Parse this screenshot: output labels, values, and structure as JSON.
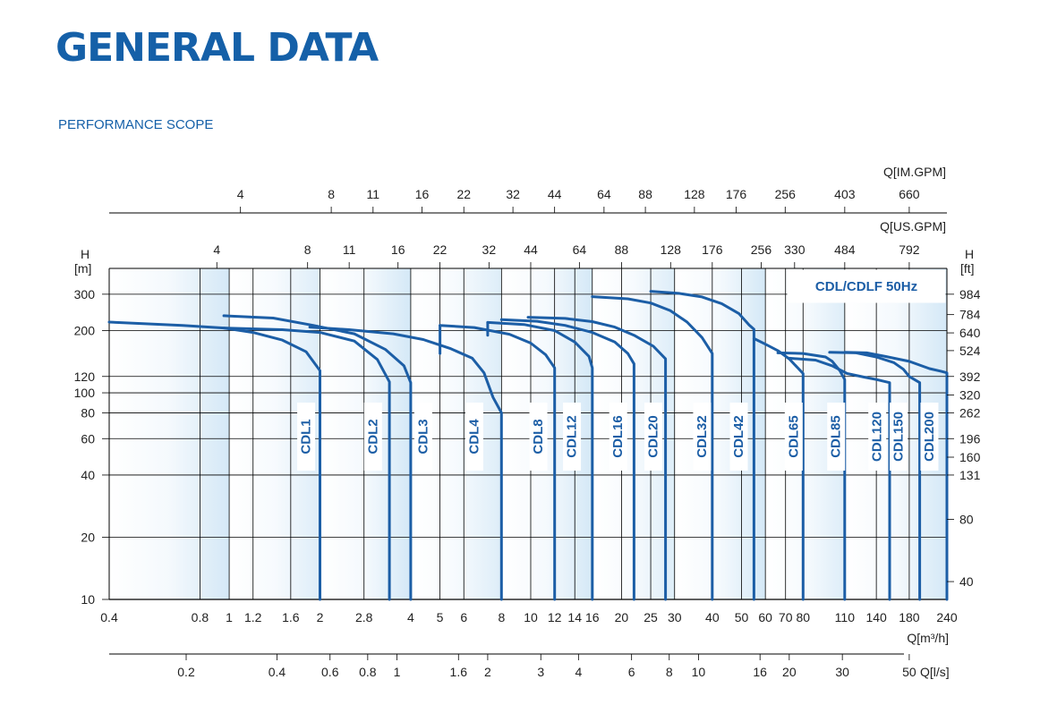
{
  "page": {
    "title": "GENERAL DATA",
    "subtitle": "PERFORMANCE SCOPE"
  },
  "colors": {
    "title": "#1560a8",
    "curve": "#1c5ea6",
    "grid": "#000000",
    "band_light": "#ffffff",
    "band_dark": "#d2e7f6"
  },
  "chart_data": {
    "type": "line",
    "legend_box": "CDL/CDLF   50Hz",
    "y_left_label": [
      "H",
      "[m]"
    ],
    "y_right_label": [
      "H",
      "[ft]"
    ],
    "x_bottom_label": "Q[m³/h]",
    "axis_im_gpm_label": "Q[IM.GPM]",
    "axis_us_gpm_label": "Q[US.GPM]",
    "axis_ls_label": "Q[l/s]",
    "x_scale": "log",
    "y_scale": "log",
    "xlim": [
      0.4,
      240
    ],
    "ylim": [
      10,
      400
    ],
    "y_ticks_m": [
      10,
      20,
      40,
      60,
      80,
      100,
      120,
      200,
      300
    ],
    "y_ticks_ft": [
      {
        "label": "40",
        "h": 12.2
      },
      {
        "label": "80",
        "h": 24.4
      },
      {
        "label": "131",
        "h": 40
      },
      {
        "label": "160",
        "h": 48.8
      },
      {
        "label": "196",
        "h": 60
      },
      {
        "label": "262",
        "h": 80
      },
      {
        "label": "320",
        "h": 97.5
      },
      {
        "label": "392",
        "h": 120
      },
      {
        "label": "524",
        "h": 160
      },
      {
        "label": "640",
        "h": 195
      },
      {
        "label": "784",
        "h": 239
      },
      {
        "label": "984",
        "h": 300
      }
    ],
    "x_ticks_m3h": [
      {
        "label": "0.4",
        "q": 0.4
      },
      {
        "label": "0.8",
        "q": 0.8
      },
      {
        "label": "1",
        "q": 1
      },
      {
        "label": "1.2",
        "q": 1.2
      },
      {
        "label": "1.6",
        "q": 1.6
      },
      {
        "label": "2",
        "q": 2
      },
      {
        "label": "2.8",
        "q": 2.8
      },
      {
        "label": "4",
        "q": 4
      },
      {
        "label": "5",
        "q": 5
      },
      {
        "label": "6",
        "q": 6
      },
      {
        "label": "8",
        "q": 8
      },
      {
        "label": "10",
        "q": 10
      },
      {
        "label": "12",
        "q": 12
      },
      {
        "label": "14",
        "q": 14
      },
      {
        "label": "16",
        "q": 16
      },
      {
        "label": "20",
        "q": 20
      },
      {
        "label": "25",
        "q": 25
      },
      {
        "label": "30",
        "q": 30
      },
      {
        "label": "40",
        "q": 40
      },
      {
        "label": "50",
        "q": 50
      },
      {
        "label": "60",
        "q": 60
      },
      {
        "label": "70",
        "q": 70
      },
      {
        "label": "80",
        "q": 80
      },
      {
        "label": "110",
        "q": 110
      },
      {
        "label": "140",
        "q": 140
      },
      {
        "label": "180",
        "q": 180
      },
      {
        "label": "240",
        "q": 240
      }
    ],
    "x_ticks_ls": [
      {
        "label": "0.2",
        "q": 0.72
      },
      {
        "label": "0.4",
        "q": 1.44
      },
      {
        "label": "0.6",
        "q": 2.16
      },
      {
        "label": "0.8",
        "q": 2.88
      },
      {
        "label": "1",
        "q": 3.6
      },
      {
        "label": "1.6",
        "q": 5.76
      },
      {
        "label": "2",
        "q": 7.2
      },
      {
        "label": "3",
        "q": 10.8
      },
      {
        "label": "4",
        "q": 14.4
      },
      {
        "label": "6",
        "q": 21.6
      },
      {
        "label": "8",
        "q": 28.8
      },
      {
        "label": "10",
        "q": 36
      },
      {
        "label": "16",
        "q": 57.6
      },
      {
        "label": "20",
        "q": 72
      },
      {
        "label": "30",
        "q": 108
      },
      {
        "label": "50",
        "q": 180
      }
    ],
    "x_ticks_us_gpm": [
      {
        "label": "4",
        "q": 0.91
      },
      {
        "label": "8",
        "q": 1.82
      },
      {
        "label": "11",
        "q": 2.5
      },
      {
        "label": "16",
        "q": 3.63
      },
      {
        "label": "22",
        "q": 5
      },
      {
        "label": "32",
        "q": 7.27
      },
      {
        "label": "44",
        "q": 10
      },
      {
        "label": "64",
        "q": 14.5
      },
      {
        "label": "88",
        "q": 20
      },
      {
        "label": "128",
        "q": 29.1
      },
      {
        "label": "176",
        "q": 40
      },
      {
        "label": "256",
        "q": 58.1
      },
      {
        "label": "330",
        "q": 75
      },
      {
        "label": "484",
        "q": 110
      },
      {
        "label": "792",
        "q": 180
      }
    ],
    "x_ticks_im_gpm": [
      {
        "label": "4",
        "q": 1.09
      },
      {
        "label": "8",
        "q": 2.18
      },
      {
        "label": "11",
        "q": 3
      },
      {
        "label": "16",
        "q": 4.36
      },
      {
        "label": "22",
        "q": 6
      },
      {
        "label": "32",
        "q": 8.73
      },
      {
        "label": "44",
        "q": 12
      },
      {
        "label": "64",
        "q": 17.5
      },
      {
        "label": "88",
        "q": 24
      },
      {
        "label": "128",
        "q": 34.9
      },
      {
        "label": "176",
        "q": 48
      },
      {
        "label": "256",
        "q": 69.8
      },
      {
        "label": "403",
        "q": 110
      },
      {
        "label": "660",
        "q": 180
      }
    ],
    "series": [
      {
        "name": "CDL1",
        "label_q": 1.8,
        "points": [
          [
            0.4,
            220
          ],
          [
            0.7,
            212
          ],
          [
            0.96,
            206
          ],
          [
            1.2,
            196
          ],
          [
            1.5,
            180
          ],
          [
            1.8,
            158
          ],
          [
            2.0,
            128
          ],
          [
            2.0,
            10
          ]
        ]
      },
      {
        "name": "CDL2",
        "label_q": 3.0,
        "points": [
          [
            0.96,
            206
          ],
          [
            1.5,
            202
          ],
          [
            2.0,
            196
          ],
          [
            2.6,
            178
          ],
          [
            3.1,
            145
          ],
          [
            3.4,
            113
          ],
          [
            3.4,
            10
          ]
        ]
      },
      {
        "name": "CDL3",
        "label_q": 4.4,
        "points": [
          [
            0.96,
            236
          ],
          [
            1.4,
            230
          ],
          [
            1.9,
            212
          ],
          [
            2.6,
            193
          ],
          [
            3.3,
            162
          ],
          [
            3.8,
            135
          ],
          [
            4.0,
            112
          ],
          [
            4.0,
            10
          ]
        ]
      },
      {
        "name": "CDL4",
        "label_q": 6.5,
        "points": [
          [
            1.85,
            208
          ],
          [
            2.5,
            202
          ],
          [
            3.5,
            193
          ],
          [
            4.4,
            181
          ],
          [
            5.4,
            164
          ],
          [
            6.4,
            147
          ],
          [
            7.0,
            125
          ],
          [
            7.5,
            95
          ],
          [
            8.0,
            80
          ],
          [
            8.0,
            10
          ]
        ]
      },
      {
        "name": "CDL8",
        "label_q": 10.6,
        "points": [
          [
            5.0,
            212
          ],
          [
            5.0,
            155
          ]
        ]
      },
      {
        "name": "CDL8_main",
        "label_q": null,
        "points": [
          [
            5.0,
            212
          ],
          [
            6.5,
            207
          ],
          [
            8.5,
            192
          ],
          [
            10.0,
            174
          ],
          [
            11.2,
            153
          ],
          [
            12.0,
            132
          ],
          [
            12.0,
            10
          ]
        ]
      },
      {
        "name": "CDL12",
        "label_q": 13.7,
        "points": [
          [
            7.2,
            219
          ],
          [
            7.2,
            190
          ]
        ]
      },
      {
        "name": "CDL12_main",
        "label_q": null,
        "points": [
          [
            7.2,
            219
          ],
          [
            9.5,
            214
          ],
          [
            12,
            200
          ],
          [
            14,
            176
          ],
          [
            15.6,
            150
          ],
          [
            16,
            132
          ],
          [
            16,
            10
          ]
        ]
      },
      {
        "name": "CDL16",
        "label_q": 19.5,
        "points": [
          [
            8.0,
            226
          ],
          [
            10.5,
            222
          ],
          [
            13,
            212
          ],
          [
            16,
            196
          ],
          [
            19,
            176
          ],
          [
            21,
            155
          ],
          [
            22,
            138
          ],
          [
            22,
            10
          ]
        ]
      },
      {
        "name": "CDL20",
        "label_q": 25.5,
        "points": [
          [
            9.8,
            232
          ],
          [
            13,
            229
          ],
          [
            16,
            221
          ],
          [
            19,
            208
          ],
          [
            22,
            190
          ],
          [
            25.5,
            168
          ],
          [
            28,
            146
          ],
          [
            28,
            10
          ]
        ]
      },
      {
        "name": "CDL32",
        "label_q": 37.0,
        "points": [
          [
            16,
            292
          ],
          [
            21,
            285
          ],
          [
            25,
            272
          ],
          [
            29,
            250
          ],
          [
            33,
            220
          ],
          [
            37,
            185
          ],
          [
            40,
            155
          ],
          [
            40,
            10
          ]
        ]
      },
      {
        "name": "CDL42",
        "label_q": 49.0,
        "points": [
          [
            25,
            310
          ],
          [
            31,
            303
          ],
          [
            37,
            291
          ],
          [
            43,
            270
          ],
          [
            49,
            242
          ],
          [
            53,
            213
          ],
          [
            55,
            203
          ],
          [
            55,
            10
          ]
        ]
      },
      {
        "name": "CDL65",
        "label_q": 74.5,
        "points": [
          [
            55,
            183
          ],
          [
            60,
            172
          ],
          [
            66,
            160
          ],
          [
            72,
            146
          ],
          [
            80,
            124
          ],
          [
            80,
            10
          ]
        ]
      },
      {
        "name": "CDL85",
        "label_q": 103,
        "points": [
          [
            66,
            156
          ],
          [
            80,
            155
          ],
          [
            95,
            149
          ],
          [
            100,
            142
          ],
          [
            106,
            128
          ],
          [
            110,
            116
          ],
          [
            110,
            10
          ]
        ]
      },
      {
        "name": "CDL120",
        "label_q": 141,
        "points": [
          [
            72,
            147
          ],
          [
            88,
            144
          ],
          [
            100,
            135
          ],
          [
            112,
            124
          ],
          [
            128,
            119
          ],
          [
            140,
            116
          ],
          [
            151,
            113
          ],
          [
            155,
            112
          ],
          [
            155,
            10
          ]
        ]
      },
      {
        "name": "CDL150",
        "label_q": 166,
        "points": [
          [
            98,
            157
          ],
          [
            120,
            156
          ],
          [
            140,
            149
          ],
          [
            160,
            140
          ],
          [
            172,
            130
          ],
          [
            180,
            120
          ],
          [
            195,
            112
          ],
          [
            195,
            10
          ]
        ]
      },
      {
        "name": "CDL200",
        "label_q": 210,
        "points": [
          [
            110,
            157
          ],
          [
            130,
            156
          ],
          [
            150,
            150
          ],
          [
            180,
            142
          ],
          [
            210,
            131
          ],
          [
            230,
            127
          ],
          [
            240,
            125
          ],
          [
            240,
            10
          ]
        ]
      }
    ]
  }
}
